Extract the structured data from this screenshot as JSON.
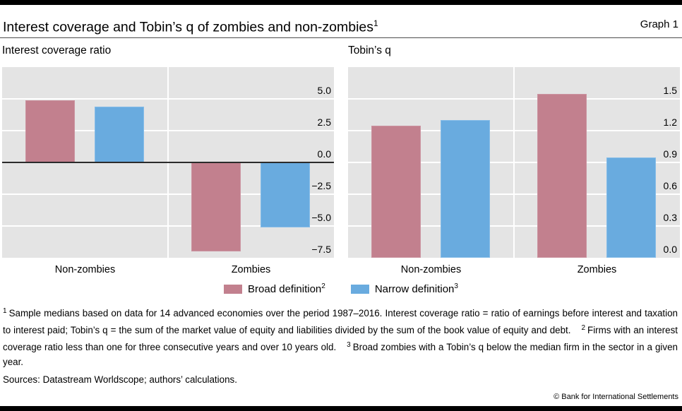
{
  "header": {
    "title": "Interest coverage and Tobin’s q of zombies and non-zombies",
    "title_sup": "1",
    "graph_label": "Graph 1"
  },
  "colors": {
    "broad": "#c2808e",
    "narrow": "#69abdf",
    "plot_background": "#e4e4e4",
    "gridline": "#ffffff",
    "zero_line": "#2b2b2b"
  },
  "chart_data": [
    {
      "type": "bar",
      "title": "Interest coverage ratio",
      "categories": [
        "Non-zombies",
        "Zombies"
      ],
      "series": [
        {
          "name": "Broad definition",
          "key": "broad",
          "values": [
            4.9,
            -7.0
          ]
        },
        {
          "name": "Narrow definition",
          "key": "narrow",
          "values": [
            4.4,
            -5.1
          ]
        }
      ],
      "ylim": [
        -7.5,
        7.5
      ],
      "yticks": [
        5.0,
        2.5,
        0.0,
        -2.5,
        -5.0,
        -7.5
      ],
      "ytick_labels": [
        "5.0",
        "2.5",
        "0.0",
        "−2.5",
        "−5.0",
        "−7.5"
      ],
      "zero_line": true,
      "grid": true,
      "legend_position": "bottom-center"
    },
    {
      "type": "bar",
      "title": "Tobin’s q",
      "categories": [
        "Non-zombies",
        "Zombies"
      ],
      "series": [
        {
          "name": "Broad definition",
          "key": "broad",
          "values": [
            1.25,
            1.55
          ]
        },
        {
          "name": "Narrow definition",
          "key": "narrow",
          "values": [
            1.3,
            0.95
          ]
        }
      ],
      "ylim": [
        0,
        1.8
      ],
      "yticks": [
        1.5,
        1.2,
        0.9,
        0.6,
        0.3,
        0.0
      ],
      "ytick_labels": [
        "1.5",
        "1.2",
        "0.9",
        "0.6",
        "0.3",
        "0.0"
      ],
      "zero_line": false,
      "grid": true,
      "legend_position": "bottom-center"
    }
  ],
  "legend": [
    {
      "label": "Broad definition",
      "sup": "2",
      "series": "broad"
    },
    {
      "label": "Narrow definition",
      "sup": "3",
      "series": "narrow"
    }
  ],
  "footnotes": [
    {
      "sup": "1",
      "text": "Sample medians based on data for 14 advanced economies over the period 1987–2016. Interest coverage ratio = ratio of earnings before interest and taxation to interest paid; Tobin’s q = the sum of the market value of equity and liabilities divided by the sum of the book value of equity and debt."
    },
    {
      "sup": "2",
      "text": "Firms with an interest coverage ratio less than one for three consecutive years and over 10 years old."
    },
    {
      "sup": "3",
      "text": "Broad zombies with a Tobin’s q below the median firm in the sector in a given year."
    }
  ],
  "sources": "Sources: Datastream Worldscope; authors’ calculations.",
  "copyright": "© Bank for International Settlements"
}
